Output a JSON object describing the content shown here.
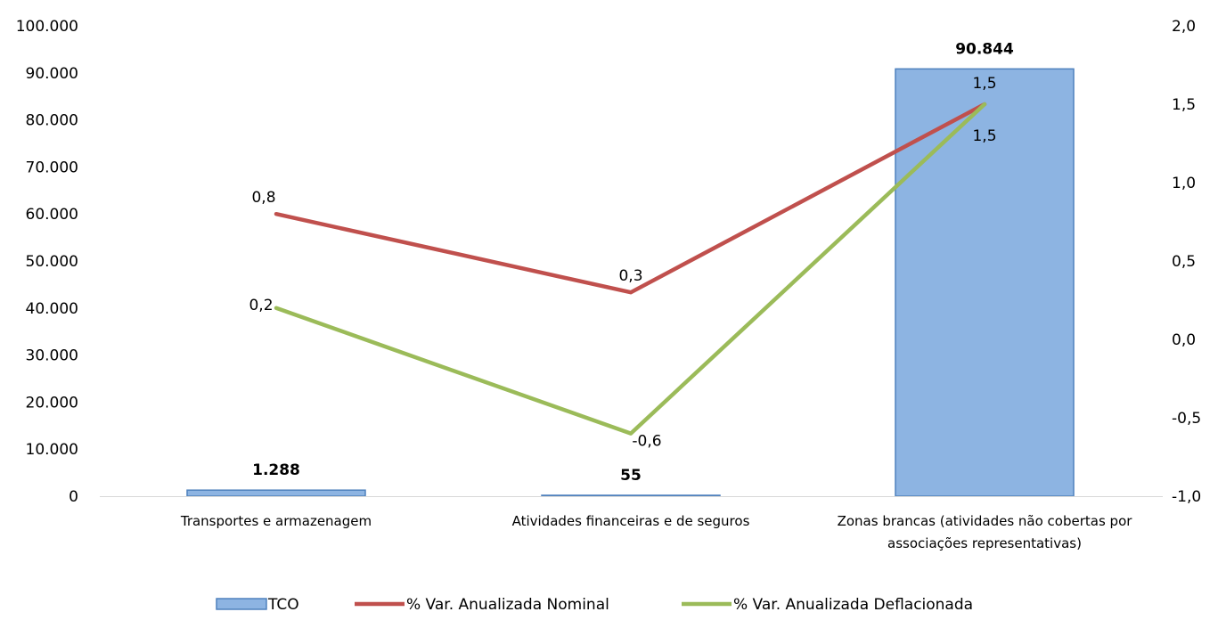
{
  "chart_data": {
    "type": "bar+line",
    "categories": [
      [
        "Transportes e armazenagem"
      ],
      [
        "Atividades financeiras e de seguros"
      ],
      [
        "Zonas brancas (atividades não cobertas por",
        "associações representativas)"
      ]
    ],
    "y_left": {
      "ylim": [
        0,
        100000
      ],
      "ticks": [
        0,
        10000,
        20000,
        30000,
        40000,
        50000,
        60000,
        70000,
        80000,
        90000,
        100000
      ],
      "tick_labels": [
        "0",
        "10.000",
        "20.000",
        "30.000",
        "40.000",
        "50.000",
        "60.000",
        "70.000",
        "80.000",
        "90.000",
        "100.000"
      ]
    },
    "y_right": {
      "ylim": [
        -1.0,
        2.0
      ],
      "ticks": [
        -1.0,
        -0.5,
        0.0,
        0.5,
        1.0,
        1.5,
        2.0
      ],
      "tick_labels": [
        "-1,0",
        "-0,5",
        "0,0",
        "0,5",
        "1,0",
        "1,5",
        "2,0"
      ]
    },
    "series": [
      {
        "name": "TCO",
        "kind": "bar",
        "axis": "left",
        "values": [
          1288,
          55,
          90844
        ],
        "labels": [
          "1.288",
          "55",
          "90.844"
        ],
        "color": "#8DB4E2",
        "border": "#4F81BD"
      },
      {
        "name": "% Var. Anualizada Nominal",
        "kind": "line",
        "axis": "right",
        "values": [
          0.8,
          0.3,
          1.5
        ],
        "labels": [
          "0,8",
          "0,3",
          "1,5"
        ],
        "color": "#C0504D"
      },
      {
        "name": "% Var. Anualizada Deflacionada",
        "kind": "line",
        "axis": "right",
        "values": [
          0.2,
          -0.6,
          1.5
        ],
        "labels": [
          "0,2",
          "-0,6",
          "1,5"
        ],
        "color": "#9BBB59"
      }
    ],
    "legend_position": "bottom",
    "grid": false
  }
}
